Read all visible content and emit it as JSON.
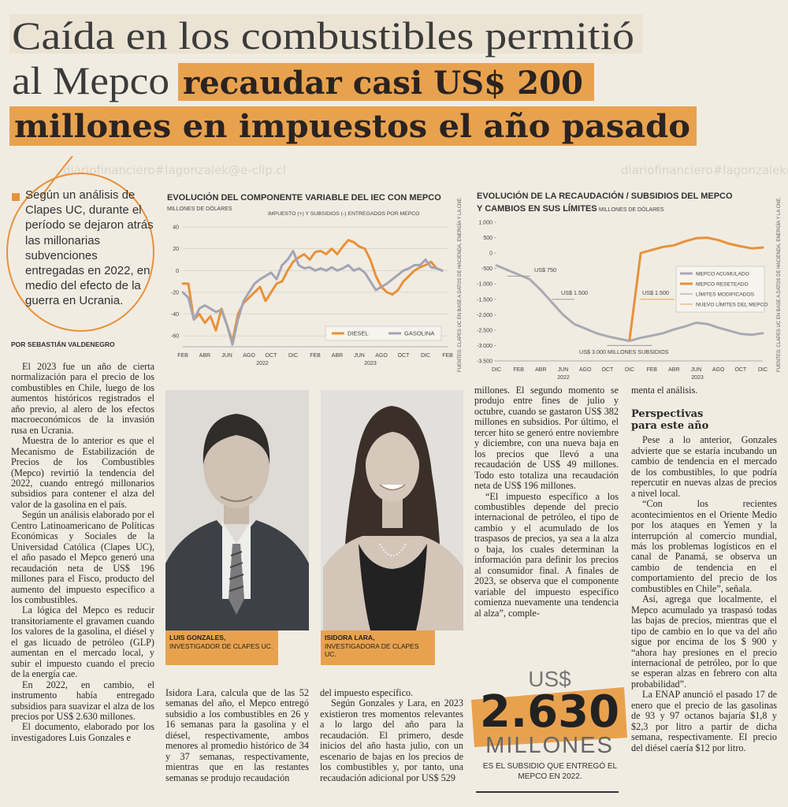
{
  "header": {
    "title_plain": [
      "Caída en los combustibles permitió",
      "al Mepco"
    ],
    "title_highlight": [
      "recaudar casi US$ 200",
      "millones en impuestos el año pasado"
    ],
    "watermark": "diariofinanciero#lagonzalek@e-clip.cl"
  },
  "lead": "Según un análisis de Clapes UC, durante el período se dejaron atrás las millonarias subvenciones entregadas en 2022, en medio del efecto de la guerra en Ucrania.",
  "byline": "POR SEBASTIÁN VALDENEGRO",
  "chart_data": [
    {
      "type": "line",
      "title": "EVOLUCIÓN DEL COMPONENTE VARIABLE DEL IEC CON MEPCO",
      "subtitle": "MILLONES DE DÓLARES",
      "note": "IMPUESTO (+) Y SUBSIDIOS (-) ENTREGADOS POR MEPCO",
      "source": "FUENTES: CLAPES UC EN BASE A DATOS DE HACIENDA, ENERGÍA Y LA CNE.",
      "categories": [
        "FEB",
        null,
        null,
        null,
        "ABR",
        null,
        null,
        null,
        "JUN",
        null,
        null,
        null,
        "AGO",
        null,
        null,
        null,
        "OCT",
        null,
        null,
        null,
        "DIC",
        null,
        null,
        null,
        "FEB",
        null,
        null,
        null,
        "ABR",
        null,
        null,
        null,
        "JUN",
        null,
        null,
        null,
        "AGO",
        null,
        null,
        null,
        "OCT",
        null,
        null,
        null,
        "DIC",
        null,
        null,
        null,
        "FEB"
      ],
      "x_groups": [
        "2022",
        "2023"
      ],
      "series": [
        {
          "name": "DIESEL",
          "color": "#e8913a",
          "linewidth": 3,
          "values": [
            -12,
            -12,
            -45,
            -40,
            -48,
            -42,
            -55,
            -35,
            -50,
            -65,
            -40,
            -30,
            -25,
            -20,
            -15,
            -28,
            -20,
            -12,
            -10,
            0,
            8,
            12,
            15,
            10,
            17,
            18,
            15,
            20,
            15,
            22,
            28,
            26,
            22,
            20,
            10,
            -5,
            -15,
            -20,
            -22,
            -18,
            -10,
            -5,
            0,
            3,
            5,
            8,
            2,
            0,
            null
          ]
        },
        {
          "name": "GASOLINA",
          "color": "#a3a5b4",
          "linewidth": 3,
          "values": [
            -20,
            -25,
            -45,
            -35,
            -32,
            -35,
            -38,
            -36,
            -50,
            -68,
            -45,
            -28,
            -20,
            -12,
            -8,
            -5,
            -2,
            -8,
            5,
            10,
            18,
            5,
            2,
            3,
            0,
            2,
            0,
            3,
            0,
            2,
            5,
            0,
            2,
            -2,
            -10,
            -18,
            -15,
            -12,
            -8,
            -4,
            0,
            2,
            5,
            5,
            10,
            3,
            2,
            0,
            null
          ]
        }
      ],
      "ylim": [
        -70,
        40
      ],
      "yticks": [
        -60,
        -40,
        -20,
        0,
        20,
        40
      ],
      "grid": true,
      "legend": "lower right"
    },
    {
      "type": "line",
      "title": [
        "EVOLUCIÓN DE LA RECAUDACIÓN / SUBSIDIOS DEL MEPCO",
        "Y CAMBIOS EN SUS LÍMITES"
      ],
      "subtitle": "MILLONES DE DÓLARES",
      "source": "FUENTES: CLAPES UC EN BASE A DATOS DE HACIENDA, ENERGÍA Y LA CNE.",
      "categories": [
        "DIC",
        null,
        "FEB",
        null,
        "ABR",
        null,
        "JUN",
        null,
        "AGO",
        null,
        "OCT",
        null,
        "DIC",
        null,
        "FEB",
        null,
        "ABR",
        null,
        "JUN",
        null,
        "AGO",
        null,
        "OCT",
        null,
        "DIC"
      ],
      "x_groups": [
        "2022",
        "2023"
      ],
      "annotations": [
        "US$ 750",
        "US$ 1.500",
        "US$ 1.500",
        "US$ 3.000 MILLONES SUBSIDIOS"
      ],
      "series": [
        {
          "name": "MEPCO ACUMULADO",
          "color": "#a9a9b3",
          "linewidth": 3,
          "values": [
            -400,
            -550,
            -700,
            -850,
            -1200,
            -1600,
            -2000,
            -2300,
            -2450,
            -2600,
            -2700,
            -2780,
            -2850,
            -2750,
            -2680,
            -2600,
            -2480,
            -2380,
            -2260,
            -2300,
            -2420,
            -2520,
            -2620,
            -2650,
            -2600
          ]
        },
        {
          "name": "MEPCO RESETEADO",
          "color": "#e8913a",
          "linewidth": 3,
          "values": [
            null,
            null,
            null,
            null,
            null,
            null,
            null,
            null,
            null,
            null,
            null,
            null,
            -2800,
            0,
            100,
            200,
            250,
            380,
            480,
            500,
            420,
            300,
            220,
            150,
            180
          ]
        },
        {
          "name": "LÍMITES MODIFICADOS",
          "color": "#9a9a9a",
          "linewidth": 1,
          "values": [
            null,
            -750,
            -750,
            -750,
            null,
            -1500,
            -1500,
            -1500,
            null,
            null,
            -3000,
            -3000,
            -3000,
            -3000,
            -3000,
            null,
            null,
            null,
            null,
            null,
            null,
            null,
            null,
            null,
            null
          ]
        },
        {
          "name": "NUEVO LÍMITES DEL MEPCO",
          "color": "#e8a24f",
          "linewidth": 1,
          "values": [
            null,
            null,
            null,
            null,
            null,
            null,
            null,
            null,
            null,
            null,
            null,
            null,
            null,
            -1500,
            -1500,
            -1500,
            -1500,
            null,
            null,
            null,
            null,
            null,
            null,
            null,
            null
          ]
        }
      ],
      "ylim": [
        -3500,
        1000
      ],
      "yticks": [
        {
          "value": 1000,
          "label": "1.000"
        },
        500,
        0,
        -500,
        {
          "value": -1000,
          "label": "-1.000"
        },
        {
          "value": -1500,
          "label": "-1.500"
        },
        {
          "value": -2000,
          "label": "-2.000"
        },
        {
          "value": -2500,
          "label": "-2.500"
        },
        {
          "value": -3000,
          "label": "-3.000"
        },
        {
          "value": -3500,
          "label": "-3.500"
        }
      ],
      "grid": false,
      "legend": "right"
    }
  ],
  "photos": [
    {
      "name": "LUIS GONZALES,",
      "role": "INVESTIGADOR DE CLAPES UC."
    },
    {
      "name": "ISIDORA LARA,",
      "role": "INVESTIGADORA DE CLAPES UC."
    }
  ],
  "callout": {
    "currency": "US$",
    "figure": "2.630",
    "unit": "MILLONES",
    "caption": "ES EL SUBSIDIO QUE ENTREGÓ EL MEPCO EN 2022."
  },
  "article": {
    "columns": [
      [
        "El 2023 fue un año de cierta normalización para el precio de los combustibles en Chile, luego de los aumentos históricos registrados el año previo, al alero de los efectos macroeconómicos de la invasión rusa en Ucrania.",
        "Muestra de lo anterior es que el Mecanismo de Estabilización de Precios de los Combustibles (Mepco) revirtió la tendencia del 2022, cuando entregó millonarios subsidios para contener el alza del valor de la gasolina en el país.",
        "Según un análisis elaborado por el Centro Latinoamericano de Políticas Económicas y Sociales de la Universidad Católica (Clapes UC), el año pasado el Mepco generó una recaudación neta de US$ 196 millones para el Fisco, producto del aumento del impuesto específico a los combustibles.",
        "La lógica del Mepco es reducir transitoriamente el gravamen cuando los valores de la gasolina, el diésel y el gas licuado de petróleo (GLP) aumentan en el mercado local, y subir el impuesto cuando el precio de la energía cae.",
        "En 2022, en cambio, el instrumento había entregado subsidios para suavizar el alza de los precios por US$ 2.630 millones.",
        "El documento, elaborado por los investigadores Luis Gonzales e"
      ],
      [
        "Isidora Lara, calcula que de las 52 semanas del año, el Mepco entregó subsidio a los combustibles en 26 y 16 semanas para la gasolina y el diésel, respectivamente, ambos menores al promedio histórico de 34 y 37 semanas, respectivamente, mientras que en las restantes semanas se produjo recaudación"
      ],
      [
        "del impuesto específico.",
        "Según Gonzales y Lara, en 2023 existieron tres momentos relevantes a lo largo del año para la recaudación. El primero, desde inicios del año hasta julio, con un escenario de bajas en los precios de los combustibles y, por tanto, una recaudación adicional por US$ 529"
      ],
      [
        "millones. El segundo momento se produjo entre fines de julio y octubre, cuando se gastaron US$ 382 millones en subsidios. Por último, el tercer hito se generó entre noviembre y diciembre, con una nueva baja en los precios que llevó a una recaudación de US$ 49 millones. Todo esto totaliza una recaudación neta de US$ 196 millones.",
        "“El impuesto específico a los combustibles depende del precio internacional de petróleo, el tipo de cambio y el acumulado de los traspasos de precios, ya sea a la alza o baja, los cuales determinan la información para definir los precios al consumidor final. A finales de 2023, se observa que el componente variable del impuesto específico comienza nuevamente una tendencia al alza”, comple-"
      ],
      [
        "menta el análisis."
      ]
    ],
    "subheading": "Perspectivas para este año",
    "after_subheading": [
      "Pese a lo anterior, Gonzales advierte que se estaría incubando un cambio de tendencia en el mercado de los combustibles, lo que podría repercutir en nuevas alzas de precios a nivel local.",
      "“Con los recientes acontecimientos en el Oriente Medio por los ataques en Yemen y la interrupción al comercio mundial, más los problemas logísticos en el canal de Panamá, se observa un cambio de tendencia en el comportamiento del precio de los combustibles en Chile”, señala.",
      "Así, agrega que localmente, el Mepco acumulado ya traspasó todas las bajas de precios, mientras que el tipo de cambio en lo que va del año sigue por encima de los $ 900 y “ahora hay presiones en el precio internacional de petróleo, por lo que se esperan alzas en febrero con alta probabilidad”.",
      "La ENAP anunció el pasado 17 de enero que el precio de las gasolinas de 93 y 97 octanos bajaría $1,8 y $2,3 por litro a partir de dicha semana, respectivamente. El precio del diésel caería $12 por litro."
    ]
  }
}
